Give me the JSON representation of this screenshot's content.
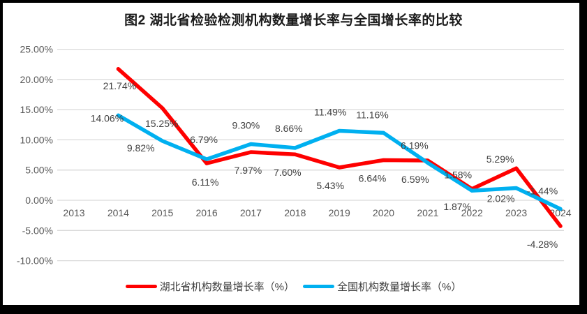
{
  "chart_data": {
    "type": "line",
    "title": "图2  湖北省检验检测机构数量增长率与全国增长率的比较",
    "categories": [
      "2013",
      "2014",
      "2015",
      "2016",
      "2017",
      "2018",
      "2019",
      "2020",
      "2021",
      "2022",
      "2023",
      "2024"
    ],
    "xlabel": "",
    "ylabel": "",
    "ylim": [
      -10,
      25
    ],
    "grid": true,
    "legend_position": "bottom",
    "y_tick_values": [
      25,
      20,
      15,
      10,
      5,
      0,
      -5,
      -10
    ],
    "y_ticks": [
      "25.00%",
      "20.00%",
      "15.00%",
      "10.00%",
      "5.00%",
      "0.00%",
      "-5.00%",
      "-10.00%"
    ],
    "series": [
      {
        "name": "湖北省机构数量增长率（%）",
        "color": "#fe0000",
        "values": [
          null,
          21.74,
          15.25,
          6.11,
          7.97,
          7.6,
          5.43,
          6.64,
          6.59,
          1.87,
          5.29,
          -4.28
        ],
        "labels": [
          null,
          "21.74%",
          "15.25%",
          "6.11%",
          "7.97%",
          "7.60%",
          "5.43%",
          "6.64%",
          "6.59%",
          "1.87%",
          "5.29%",
          "-4.28%"
        ]
      },
      {
        "name": "全国机构数量增长率（%）",
        "color": "#00b0f0",
        "values": [
          null,
          14.06,
          9.82,
          6.79,
          9.3,
          8.66,
          11.49,
          11.16,
          6.19,
          1.58,
          2.02,
          -1.44
        ],
        "labels": [
          null,
          "14.06%",
          "9.82%",
          "6.79%",
          "9.30%",
          "8.66%",
          "11.49%",
          "11.16%",
          "6.19%",
          "1.58%",
          "2.02%",
          "-1.44%"
        ]
      }
    ]
  },
  "colors": {
    "frame": "#000000",
    "grid": "#d9d9d9",
    "axis_text": "#595959",
    "data_label_text": "#404040",
    "title_text": "#1a1a1a"
  }
}
